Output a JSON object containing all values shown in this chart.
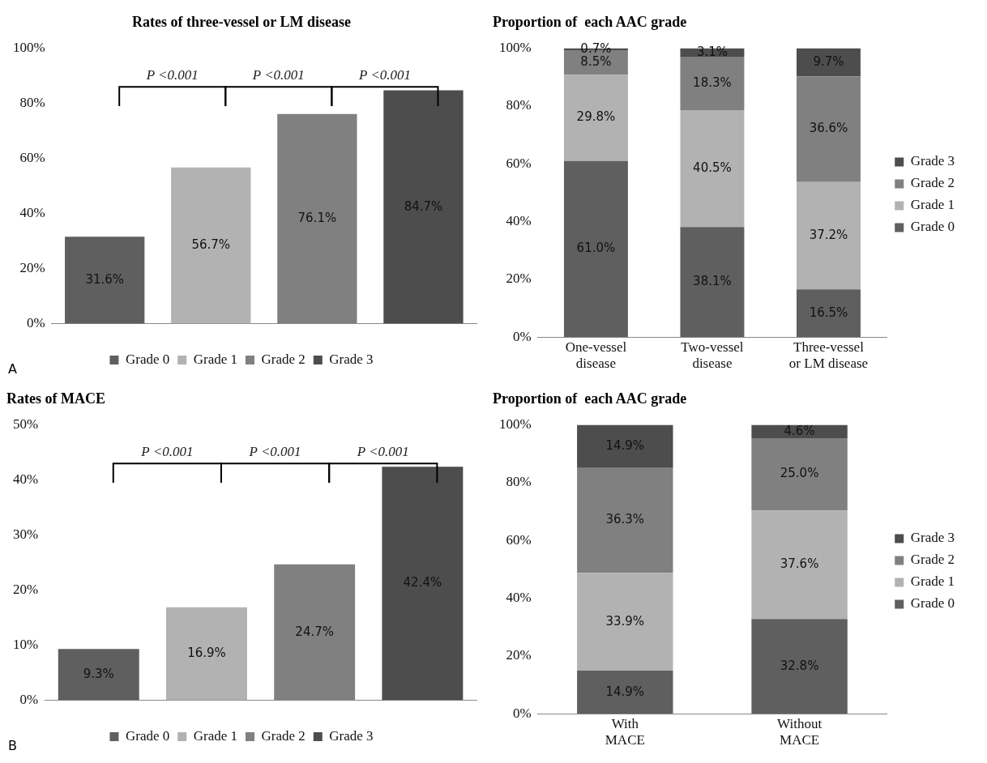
{
  "chart_data": [
    {
      "type": "bar",
      "title": "Rates of three-vessel or LM disease",
      "categories": [
        null,
        null,
        null,
        null
      ],
      "series": [
        {
          "name": "Grade 0",
          "color": "#5f5f5f",
          "values": [
            31.6,
            null,
            null,
            null
          ],
          "value_labels": [
            "31.6%",
            null,
            null,
            null
          ]
        },
        {
          "name": "Grade 1",
          "color": "#b2b2b2",
          "values": [
            null,
            56.7,
            null,
            null
          ],
          "value_labels": [
            null,
            "56.7%",
            null,
            null
          ]
        },
        {
          "name": "Grade 2",
          "color": "#808080",
          "values": [
            null,
            null,
            76.1,
            null
          ],
          "value_labels": [
            null,
            null,
            "76.1%",
            null
          ]
        },
        {
          "name": "Grade 3",
          "color": "#4d4d4d",
          "values": [
            null,
            null,
            null,
            84.7
          ],
          "value_labels": [
            null,
            null,
            null,
            "84.7%"
          ]
        }
      ],
      "ylim": [
        0,
        100
      ],
      "yticks": [
        {
          "value": 0,
          "label": "0%"
        },
        {
          "value": 20,
          "label": "20%"
        },
        {
          "value": 40,
          "label": "40%"
        },
        {
          "value": 60,
          "label": "60%"
        },
        {
          "value": 80,
          "label": "80%"
        },
        {
          "value": 100,
          "label": "100%"
        }
      ],
      "legend": "bottom",
      "annotations": [
        "P <0.001",
        "P <0.001",
        "P <0.001",
        "A"
      ]
    },
    {
      "type": "bar",
      "title": "Proportion of  each AAC grade",
      "stacked": true,
      "categories": [
        "One-vessel disease",
        "Two-vessel disease",
        "Three-vessel or LM disease"
      ],
      "series": [
        {
          "name": "Grade 0",
          "color": "#5f5f5f",
          "values": [
            61.0,
            38.1,
            16.5
          ],
          "value_labels": [
            "61.0%",
            "38.1%",
            "16.5%"
          ]
        },
        {
          "name": "Grade 1",
          "color": "#b2b2b2",
          "values": [
            29.8,
            40.5,
            37.2
          ],
          "value_labels": [
            "29.8%",
            "40.5%",
            "37.2%"
          ]
        },
        {
          "name": "Grade 2",
          "color": "#808080",
          "values": [
            8.5,
            18.3,
            36.6
          ],
          "value_labels": [
            "8.5%",
            "18.3%",
            "36.6%"
          ]
        },
        {
          "name": "Grade 3",
          "color": "#4d4d4d",
          "values": [
            0.7,
            3.1,
            9.7
          ],
          "value_labels": [
            "0.7%",
            "3.1%",
            "9.7%"
          ]
        }
      ],
      "ylim": [
        0,
        100
      ],
      "yticks": [
        {
          "value": 0,
          "label": "0%"
        },
        {
          "value": 20,
          "label": "20%"
        },
        {
          "value": 40,
          "label": "40%"
        },
        {
          "value": 60,
          "label": "60%"
        },
        {
          "value": 80,
          "label": "80%"
        },
        {
          "value": 100,
          "label": "100%"
        }
      ],
      "legend": "right"
    },
    {
      "type": "bar",
      "title": "Rates of MACE",
      "categories": [
        null,
        null,
        null,
        null
      ],
      "series": [
        {
          "name": "Grade 0",
          "color": "#5f5f5f",
          "values": [
            9.3,
            null,
            null,
            null
          ],
          "value_labels": [
            "9.3%",
            null,
            null,
            null
          ]
        },
        {
          "name": "Grade 1",
          "color": "#b2b2b2",
          "values": [
            null,
            16.9,
            null,
            null
          ],
          "value_labels": [
            null,
            "16.9%",
            null,
            null
          ]
        },
        {
          "name": "Grade 2",
          "color": "#808080",
          "values": [
            null,
            null,
            24.7,
            null
          ],
          "value_labels": [
            null,
            null,
            "24.7%",
            null
          ]
        },
        {
          "name": "Grade 3",
          "color": "#4d4d4d",
          "values": [
            null,
            null,
            null,
            42.4
          ],
          "value_labels": [
            null,
            null,
            null,
            "42.4%"
          ]
        }
      ],
      "ylim": [
        0,
        50
      ],
      "yticks": [
        {
          "value": 0,
          "label": "0%"
        },
        {
          "value": 10,
          "label": "10%"
        },
        {
          "value": 20,
          "label": "20%"
        },
        {
          "value": 30,
          "label": "30%"
        },
        {
          "value": 40,
          "label": "40%"
        },
        {
          "value": 50,
          "label": "50%"
        }
      ],
      "legend": "bottom",
      "annotations": [
        "P <0.001",
        "P <0.001",
        "P <0.001",
        "B"
      ]
    },
    {
      "type": "bar",
      "title": "Proportion of  each AAC grade",
      "stacked": true,
      "categories": [
        "With MACE",
        "Without MACE"
      ],
      "series": [
        {
          "name": "Grade 0",
          "color": "#5f5f5f",
          "values": [
            14.9,
            32.8
          ],
          "value_labels": [
            "14.9%",
            "32.8%"
          ]
        },
        {
          "name": "Grade 1",
          "color": "#b2b2b2",
          "values": [
            33.9,
            37.6
          ],
          "value_labels": [
            "33.9%",
            "37.6%"
          ]
        },
        {
          "name": "Grade 2",
          "color": "#808080",
          "values": [
            36.3,
            25.0
          ],
          "value_labels": [
            "36.3%",
            "25.0%"
          ]
        },
        {
          "name": "Grade 3",
          "color": "#4d4d4d",
          "values": [
            14.9,
            4.6
          ],
          "value_labels": [
            "14.9%",
            "4.6%"
          ]
        }
      ],
      "ylim": [
        0,
        100
      ],
      "yticks": [
        {
          "value": 0,
          "label": "0%"
        },
        {
          "value": 20,
          "label": "20%"
        },
        {
          "value": 40,
          "label": "40%"
        },
        {
          "value": 60,
          "label": "60%"
        },
        {
          "value": 80,
          "label": "80%"
        },
        {
          "value": 100,
          "label": "100%"
        }
      ],
      "legend": "right"
    }
  ]
}
